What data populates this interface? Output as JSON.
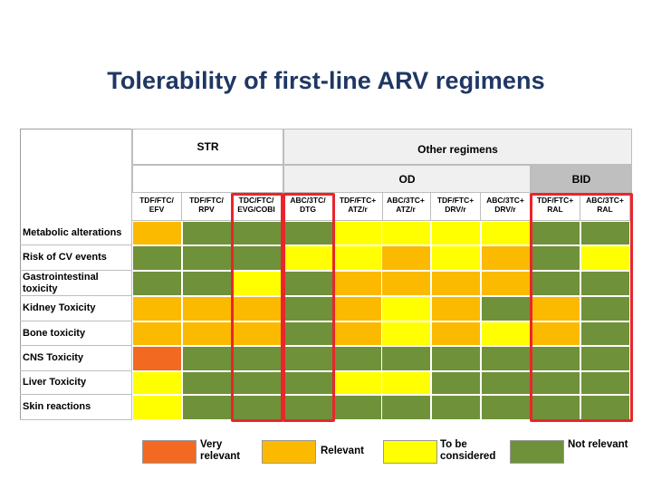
{
  "title": "Tolerability of first-line ARV regimens",
  "colors": {
    "very_relevant": "#f26a21",
    "relevant": "#fbb900",
    "to_be_considered": "#ffff00",
    "not_relevant": "#6f913a"
  },
  "headers": {
    "str": "STR",
    "other_regimens": "Other regimens",
    "od": "OD",
    "bid": "BID"
  },
  "columns": [
    "TDF/FTC/ EFV",
    "TDF/FTC/ RPV",
    "TDC/FTC/ EVG/COBI",
    "ABC/3TC/ DTG",
    "TDF/FTC+ ATZ/r",
    "ABC/3TC+ ATZ/r",
    "TDF/FTC+ DRV/r",
    "ABC/3TC+ DRV/r",
    "TDF/FTC+ RAL",
    "ABC/3TC+ RAL"
  ],
  "rows": [
    {
      "label": "Metabolic alterations",
      "cells": [
        "relevant",
        "not_relevant",
        "not_relevant",
        "not_relevant",
        "to_be_considered",
        "to_be_considered",
        "to_be_considered",
        "to_be_considered",
        "not_relevant",
        "not_relevant"
      ]
    },
    {
      "label": "Risk of CV events",
      "cells": [
        "not_relevant",
        "not_relevant",
        "not_relevant",
        "to_be_considered",
        "to_be_considered",
        "relevant",
        "to_be_considered",
        "relevant",
        "not_relevant",
        "to_be_considered"
      ]
    },
    {
      "label": "Gastrointestinal toxicity",
      "cells": [
        "not_relevant",
        "not_relevant",
        "to_be_considered",
        "not_relevant",
        "relevant",
        "relevant",
        "relevant",
        "relevant",
        "not_relevant",
        "not_relevant"
      ]
    },
    {
      "label": "Kidney Toxicity",
      "cells": [
        "relevant",
        "relevant",
        "relevant",
        "not_relevant",
        "relevant",
        "to_be_considered",
        "relevant",
        "not_relevant",
        "relevant",
        "not_relevant"
      ]
    },
    {
      "label": "Bone toxicity",
      "cells": [
        "relevant",
        "relevant",
        "relevant",
        "not_relevant",
        "relevant",
        "to_be_considered",
        "relevant",
        "to_be_considered",
        "relevant",
        "not_relevant"
      ]
    },
    {
      "label": "CNS Toxicity",
      "cells": [
        "very_relevant",
        "not_relevant",
        "not_relevant",
        "not_relevant",
        "not_relevant",
        "not_relevant",
        "not_relevant",
        "not_relevant",
        "not_relevant",
        "not_relevant"
      ]
    },
    {
      "label": "Liver Toxicity",
      "cells": [
        "to_be_considered",
        "not_relevant",
        "not_relevant",
        "not_relevant",
        "to_be_considered",
        "to_be_considered",
        "not_relevant",
        "not_relevant",
        "not_relevant",
        "not_relevant"
      ]
    },
    {
      "label": "Skin reactions",
      "cells": [
        "to_be_considered",
        "not_relevant",
        "not_relevant",
        "not_relevant",
        "not_relevant",
        "not_relevant",
        "not_relevant",
        "not_relevant",
        "not_relevant",
        "not_relevant"
      ]
    }
  ],
  "legend": [
    {
      "key": "very_relevant",
      "label": "Very relevant"
    },
    {
      "key": "relevant",
      "label": "Relevant"
    },
    {
      "key": "to_be_considered",
      "label": "To be considered"
    },
    {
      "key": "not_relevant",
      "label": "Not relevant"
    }
  ]
}
